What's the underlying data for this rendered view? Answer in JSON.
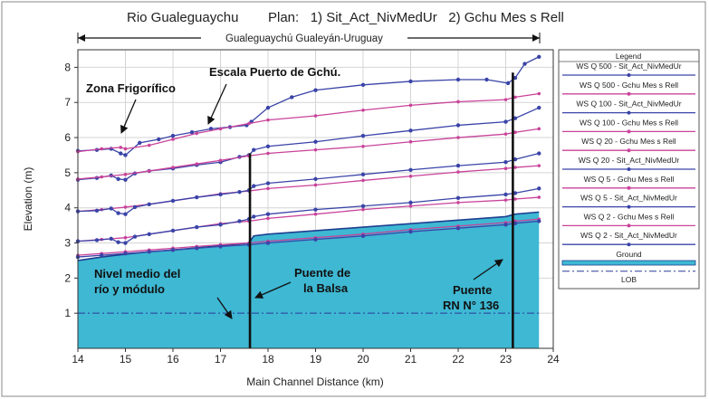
{
  "header": {
    "title": "Rio Gualeguaychu",
    "plan": "Plan:   1) Sit_Act_NivMedUr   2) Gchu Mes s Rell"
  },
  "span_label": "Gualeguaychú Gualeyán-Uruguay",
  "annotations": {
    "zona": "Zona Frigorífico",
    "escala": "Escala Puerto de Gchú.",
    "nivel_1": "Nivel medio del",
    "nivel_2": "río y módulo",
    "puente_balsa_1": "Puente de",
    "puente_balsa_2": "la Balsa",
    "puente_rn_1": "Puente",
    "puente_rn_2": "RN N° 136"
  },
  "colors": {
    "ground_fill": "#3eb8d3",
    "ground_line": "#1f3f8f",
    "plan1_line": "#3a44a8",
    "plan2_line": "#c9439a",
    "lob_line": "#2a3a9a",
    "bridge": "#111111"
  },
  "chart_data": {
    "type": "line",
    "xlabel": "Main Channel Distance (km)",
    "ylabel": "Elevation (m)",
    "xlim": [
      14,
      24
    ],
    "ylim": [
      0,
      8.5
    ],
    "x_ticks": [
      14,
      15,
      16,
      17,
      18,
      19,
      20,
      21,
      22,
      23,
      24
    ],
    "y_ticks": [
      1,
      2,
      3,
      4,
      5,
      6,
      7,
      8
    ],
    "grid": true,
    "legend": {
      "title": "Legend",
      "placement": "right",
      "entries": [
        {
          "label": "WS Q 500 - Sit_Act_NivMedUr",
          "style": "plan1"
        },
        {
          "label": "WS Q 500 - Gchu Mes s Rell",
          "style": "plan2"
        },
        {
          "label": "WS Q 100 - Sit_Act_NivMedUr",
          "style": "plan1"
        },
        {
          "label": "WS Q 100 - Gchu Mes s Rell",
          "style": "plan2"
        },
        {
          "label": "WS Q 20 - Gchu Mes s Rell",
          "style": "plan2"
        },
        {
          "label": "WS Q 20 - Sit_Act_NivMedUr",
          "style": "plan1"
        },
        {
          "label": "WS Q 5 - Gchu Mes s Rell",
          "style": "plan2"
        },
        {
          "label": "WS Q 5 - Sit_Act_NivMedUr",
          "style": "plan1"
        },
        {
          "label": "WS Q 2 - Gchu Mes s Rell",
          "style": "plan2"
        },
        {
          "label": "WS Q 2 - Sit_Act_NivMedUr",
          "style": "plan1"
        },
        {
          "label": "Ground",
          "style": "ground"
        },
        {
          "label": "LOB",
          "style": "lob"
        }
      ]
    },
    "series": [
      {
        "name": "WS Q 500 - Sit_Act_NivMedUr",
        "plan": 1,
        "x": [
          14.0,
          14.4,
          14.7,
          14.9,
          15.0,
          15.3,
          15.7,
          16.0,
          16.4,
          16.8,
          17.2,
          17.55,
          17.65,
          18.0,
          18.5,
          19.0,
          20.0,
          21.0,
          22.0,
          22.6,
          23.05,
          23.2,
          23.4,
          23.7
        ],
        "y": [
          5.62,
          5.65,
          5.68,
          5.55,
          5.5,
          5.85,
          5.95,
          6.05,
          6.15,
          6.25,
          6.3,
          6.35,
          6.45,
          6.85,
          7.15,
          7.35,
          7.5,
          7.6,
          7.65,
          7.65,
          7.55,
          7.7,
          8.1,
          8.3
        ]
      },
      {
        "name": "WS Q 500 - Gchu Mes s Rell",
        "plan": 2,
        "x": [
          14.0,
          14.5,
          14.9,
          15.0,
          15.5,
          16.0,
          16.5,
          17.0,
          17.6,
          18.0,
          19.0,
          20.0,
          21.0,
          22.0,
          23.0,
          23.2,
          23.7
        ],
        "y": [
          5.6,
          5.68,
          5.72,
          5.68,
          5.78,
          5.95,
          6.12,
          6.25,
          6.4,
          6.5,
          6.62,
          6.78,
          6.92,
          7.02,
          7.08,
          7.15,
          7.25
        ]
      },
      {
        "name": "WS Q 100 - Sit_Act_NivMedUr",
        "plan": 1,
        "x": [
          14.0,
          14.4,
          14.7,
          14.85,
          15.0,
          15.2,
          15.5,
          16.0,
          16.5,
          17.0,
          17.4,
          17.6,
          17.7,
          18.0,
          19.0,
          20.0,
          21.0,
          22.0,
          23.0,
          23.2,
          23.7
        ],
        "y": [
          4.8,
          4.85,
          4.92,
          4.82,
          4.8,
          4.98,
          5.05,
          5.12,
          5.22,
          5.3,
          5.45,
          5.5,
          5.65,
          5.75,
          5.88,
          6.05,
          6.2,
          6.35,
          6.45,
          6.55,
          6.85
        ]
      },
      {
        "name": "WS Q 100 - Gchu Mes s Rell",
        "plan": 2,
        "x": [
          14.0,
          14.5,
          15.0,
          15.5,
          16.0,
          16.5,
          17.0,
          17.6,
          18.0,
          19.0,
          20.0,
          21.0,
          22.0,
          23.0,
          23.2,
          23.7
        ],
        "y": [
          4.82,
          4.88,
          4.95,
          5.05,
          5.15,
          5.25,
          5.35,
          5.48,
          5.55,
          5.65,
          5.75,
          5.88,
          6.0,
          6.1,
          6.15,
          6.25
        ]
      },
      {
        "name": "WS Q 20 - Gchu Mes s Rell",
        "plan": 2,
        "x": [
          14.0,
          14.5,
          15.0,
          15.5,
          16.0,
          16.5,
          17.0,
          17.6,
          18.0,
          19.0,
          20.0,
          21.0,
          22.0,
          23.0,
          23.2,
          23.7
        ],
        "y": [
          3.9,
          3.95,
          4.02,
          4.1,
          4.2,
          4.3,
          4.4,
          4.48,
          4.55,
          4.65,
          4.78,
          4.9,
          5.02,
          5.12,
          5.15,
          5.2
        ]
      },
      {
        "name": "WS Q 20 - Sit_Act_NivMedUr",
        "plan": 1,
        "x": [
          14.0,
          14.4,
          14.7,
          14.85,
          15.0,
          15.2,
          15.5,
          16.0,
          16.5,
          17.0,
          17.4,
          17.6,
          17.7,
          18.0,
          19.0,
          20.0,
          21.0,
          22.0,
          23.0,
          23.2,
          23.7
        ],
        "y": [
          3.9,
          3.92,
          3.98,
          3.85,
          3.82,
          4.02,
          4.1,
          4.2,
          4.3,
          4.38,
          4.45,
          4.5,
          4.62,
          4.7,
          4.82,
          4.95,
          5.08,
          5.2,
          5.3,
          5.38,
          5.55
        ]
      },
      {
        "name": "WS Q 5 - Gchu Mes s Rell",
        "plan": 2,
        "x": [
          14.0,
          14.5,
          15.0,
          15.5,
          16.0,
          16.5,
          17.0,
          17.6,
          18.0,
          19.0,
          20.0,
          21.0,
          22.0,
          23.0,
          23.2,
          23.7
        ],
        "y": [
          3.05,
          3.1,
          3.15,
          3.25,
          3.35,
          3.45,
          3.55,
          3.62,
          3.7,
          3.82,
          3.95,
          4.05,
          4.15,
          4.22,
          4.25,
          4.3
        ]
      },
      {
        "name": "WS Q 5 - Sit_Act_NivMedUr",
        "plan": 1,
        "x": [
          14.0,
          14.4,
          14.7,
          14.85,
          15.0,
          15.2,
          15.5,
          16.0,
          16.5,
          17.0,
          17.4,
          17.6,
          17.7,
          18.0,
          19.0,
          20.0,
          21.0,
          22.0,
          23.0,
          23.2,
          23.7
        ],
        "y": [
          3.05,
          3.08,
          3.12,
          3.02,
          3.0,
          3.18,
          3.25,
          3.35,
          3.45,
          3.52,
          3.62,
          3.68,
          3.75,
          3.82,
          3.95,
          4.05,
          4.15,
          4.28,
          4.38,
          4.42,
          4.55
        ]
      },
      {
        "name": "WS Q 2 - Gchu Mes s Rell",
        "plan": 2,
        "x": [
          14.0,
          14.5,
          15.0,
          15.5,
          16.0,
          16.5,
          17.0,
          17.6,
          18.0,
          19.0,
          20.0,
          21.0,
          22.0,
          23.0,
          23.2,
          23.7
        ],
        "y": [
          2.65,
          2.7,
          2.75,
          2.8,
          2.85,
          2.9,
          2.95,
          3.0,
          3.05,
          3.15,
          3.25,
          3.38,
          3.48,
          3.58,
          3.62,
          3.68
        ]
      },
      {
        "name": "WS Q 2 - Sit_Act_NivMedUr",
        "plan": 1,
        "x": [
          14.0,
          14.5,
          15.0,
          15.5,
          16.0,
          16.5,
          17.0,
          17.6,
          18.0,
          19.0,
          20.0,
          21.0,
          22.0,
          23.0,
          23.2,
          23.7
        ],
        "y": [
          2.6,
          2.65,
          2.7,
          2.75,
          2.8,
          2.85,
          2.9,
          2.95,
          3.0,
          3.1,
          3.2,
          3.32,
          3.42,
          3.52,
          3.56,
          3.62
        ]
      }
    ],
    "ground": {
      "x": [
        14.0,
        14.5,
        15.0,
        15.5,
        16.0,
        16.5,
        17.0,
        17.6,
        17.7,
        18.0,
        19.0,
        20.0,
        21.0,
        22.0,
        23.0,
        23.2,
        23.7
      ],
      "y": [
        2.5,
        2.6,
        2.68,
        2.75,
        2.8,
        2.86,
        2.92,
        3.0,
        3.2,
        3.25,
        3.35,
        3.45,
        3.55,
        3.65,
        3.75,
        3.82,
        3.88
      ]
    },
    "lob_level": 1.0,
    "bridges": [
      17.62,
      23.15
    ]
  }
}
